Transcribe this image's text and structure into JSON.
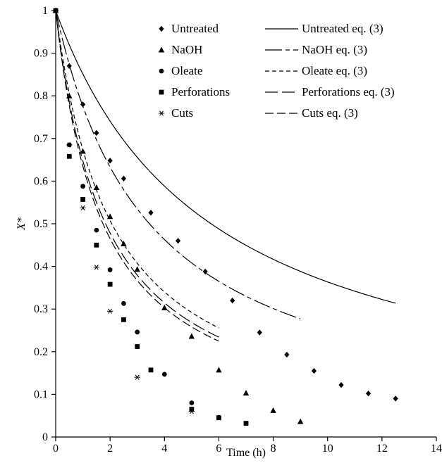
{
  "chart_data": {
    "type": "scatter",
    "title": "",
    "xlabel": "Time (h)",
    "ylabel": "X*",
    "xlim": [
      0,
      14
    ],
    "ylim": [
      0,
      1
    ],
    "xticks": [
      0,
      2,
      4,
      6,
      8,
      10,
      12,
      14
    ],
    "yticks": [
      0,
      0.1,
      0.2,
      0.3,
      0.4,
      0.5,
      0.6,
      0.7,
      0.8,
      0.9,
      1
    ],
    "grid": false,
    "legend_position": "top-right",
    "series": [
      {
        "name": "Untreated",
        "marker": "diamond",
        "points": [
          [
            0,
            1
          ],
          [
            0.5,
            0.87
          ],
          [
            1,
            0.78
          ],
          [
            1.5,
            0.713
          ],
          [
            2,
            0.648
          ],
          [
            2.5,
            0.606
          ],
          [
            3.5,
            0.526
          ],
          [
            4.5,
            0.46
          ],
          [
            5.5,
            0.388
          ],
          [
            6.5,
            0.32
          ],
          [
            7.5,
            0.245
          ],
          [
            8.5,
            0.193
          ],
          [
            9.5,
            0.155
          ],
          [
            10.5,
            0.122
          ],
          [
            11.5,
            0.102
          ],
          [
            12.5,
            0.09
          ]
        ]
      },
      {
        "name": "NaOH",
        "marker": "triangle",
        "points": [
          [
            0,
            1
          ],
          [
            0.5,
            0.8
          ],
          [
            1,
            0.67
          ],
          [
            1.5,
            0.585
          ],
          [
            2,
            0.517
          ],
          [
            2.5,
            0.453
          ],
          [
            3,
            0.393
          ],
          [
            4,
            0.303
          ],
          [
            5,
            0.236
          ],
          [
            6,
            0.157
          ],
          [
            7,
            0.103
          ],
          [
            8,
            0.062
          ],
          [
            9,
            0.036
          ]
        ]
      },
      {
        "name": "Oleate",
        "marker": "circle",
        "points": [
          [
            0,
            1
          ],
          [
            0.5,
            0.685
          ],
          [
            1,
            0.588
          ],
          [
            1.5,
            0.485
          ],
          [
            2,
            0.392
          ],
          [
            2.5,
            0.313
          ],
          [
            3,
            0.246
          ],
          [
            4,
            0.147
          ],
          [
            5,
            0.08
          ],
          [
            6,
            0.046
          ]
        ]
      },
      {
        "name": "Perforations",
        "marker": "square",
        "points": [
          [
            0,
            1
          ],
          [
            0.5,
            0.658
          ],
          [
            1,
            0.557
          ],
          [
            1.5,
            0.45
          ],
          [
            2,
            0.358
          ],
          [
            2.5,
            0.275
          ],
          [
            3,
            0.212
          ],
          [
            3.5,
            0.157
          ],
          [
            5,
            0.065
          ],
          [
            6,
            0.045
          ],
          [
            7,
            0.032
          ]
        ]
      },
      {
        "name": "Cuts",
        "marker": "asterisk",
        "points": [
          [
            0,
            1
          ],
          [
            0.5,
            0.685
          ],
          [
            1,
            0.537
          ],
          [
            1.5,
            0.398
          ],
          [
            2,
            0.295
          ],
          [
            3,
            0.14
          ],
          [
            5,
            0.06
          ]
        ]
      }
    ],
    "fits": [
      {
        "name": "Untreated eq. (3)",
        "dash": "solid",
        "k": 0.175,
        "n": 1,
        "xmax": 12.5
      },
      {
        "name": "NaOH eq. (3)",
        "dash": "longshort",
        "k": 0.29,
        "n": 1.05,
        "xmax": 9
      },
      {
        "name": "Oleate eq. (3)",
        "dash": "short",
        "k": 0.485,
        "n": 1.06,
        "xmax": 6
      },
      {
        "name": "Perforations eq. (3)",
        "dash": "long",
        "k": 0.545,
        "n": 1.05,
        "xmax": 6
      },
      {
        "name": "Cuts eq. (3)",
        "dash": "medium",
        "k": 0.575,
        "n": 1.05,
        "xmax": 6
      }
    ]
  }
}
